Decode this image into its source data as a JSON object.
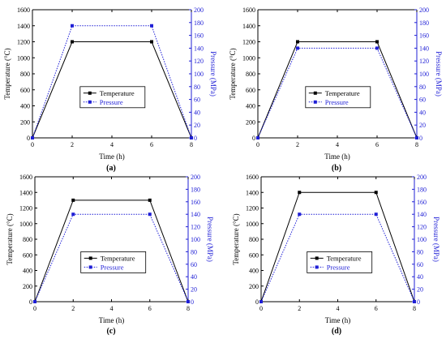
{
  "colors": {
    "temperature": "#000000",
    "pressure": "#1f1fd6",
    "axis": "#000000"
  },
  "chart_data": [
    {
      "type": "line",
      "panel_label": "(a)",
      "xlabel": "Time (h)",
      "ylabel_left": "Temperature (°C)",
      "ylabel_right": "Pressure (MPa)",
      "xlim": [
        0,
        8
      ],
      "xticks": [
        0,
        2,
        4,
        6,
        8
      ],
      "ylim_left": [
        0,
        1600
      ],
      "yticks_left": [
        0,
        200,
        400,
        600,
        800,
        1000,
        1200,
        1400,
        1600
      ],
      "ylim_right": [
        0,
        200
      ],
      "yticks_right": [
        0,
        20,
        40,
        60,
        80,
        100,
        120,
        140,
        160,
        180,
        200
      ],
      "legend_position": "center",
      "series": [
        {
          "name": "Temperature",
          "axis": "left",
          "style": "solid",
          "marker": "square",
          "x": [
            0,
            2,
            6,
            8
          ],
          "y": [
            0,
            1200,
            1200,
            0
          ]
        },
        {
          "name": "Pressure",
          "axis": "right",
          "style": "dotted",
          "marker": "square",
          "x": [
            0,
            2,
            6,
            8
          ],
          "y": [
            0,
            175,
            175,
            0
          ]
        }
      ]
    },
    {
      "type": "line",
      "panel_label": "(b)",
      "xlabel": "Time (h)",
      "ylabel_left": "Temperature (°C)",
      "ylabel_right": "Pressure (MPa)",
      "xlim": [
        0,
        8
      ],
      "xticks": [
        0,
        2,
        4,
        6,
        8
      ],
      "ylim_left": [
        0,
        1600
      ],
      "yticks_left": [
        0,
        200,
        400,
        600,
        800,
        1000,
        1200,
        1400,
        1600
      ],
      "ylim_right": [
        0,
        200
      ],
      "yticks_right": [
        0,
        20,
        40,
        60,
        80,
        100,
        120,
        140,
        160,
        180,
        200
      ],
      "legend_position": "center",
      "series": [
        {
          "name": "Temperature",
          "axis": "left",
          "style": "solid",
          "marker": "square",
          "x": [
            0,
            2,
            6,
            8
          ],
          "y": [
            0,
            1200,
            1200,
            0
          ]
        },
        {
          "name": "Pressure",
          "axis": "right",
          "style": "dotted",
          "marker": "square",
          "x": [
            0,
            2,
            6,
            8
          ],
          "y": [
            0,
            140,
            140,
            0
          ]
        }
      ]
    },
    {
      "type": "line",
      "panel_label": "(c)",
      "xlabel": "Time (h)",
      "ylabel_left": "Temperature (°C)",
      "ylabel_right": "Pressure (MPa)",
      "xlim": [
        0,
        8
      ],
      "xticks": [
        0,
        2,
        4,
        6,
        8
      ],
      "ylim_left": [
        0,
        1600
      ],
      "yticks_left": [
        0,
        200,
        400,
        600,
        800,
        1000,
        1200,
        1400,
        1600
      ],
      "ylim_right": [
        0,
        200
      ],
      "yticks_right": [
        0,
        20,
        40,
        60,
        80,
        100,
        120,
        140,
        160,
        180,
        200
      ],
      "legend_position": "center",
      "series": [
        {
          "name": "Temperature",
          "axis": "left",
          "style": "solid",
          "marker": "square",
          "x": [
            0,
            2,
            6,
            8
          ],
          "y": [
            0,
            1300,
            1300,
            0
          ]
        },
        {
          "name": "Pressure",
          "axis": "right",
          "style": "dotted",
          "marker": "square",
          "x": [
            0,
            2,
            6,
            8
          ],
          "y": [
            0,
            140,
            140,
            0
          ]
        }
      ]
    },
    {
      "type": "line",
      "panel_label": "(d)",
      "xlabel": "Time (h)",
      "ylabel_left": "Temperature (°C)",
      "ylabel_right": "Pressure (MPa)",
      "xlim": [
        0,
        8
      ],
      "xticks": [
        0,
        2,
        4,
        6,
        8
      ],
      "ylim_left": [
        0,
        1600
      ],
      "yticks_left": [
        0,
        200,
        400,
        600,
        800,
        1000,
        1200,
        1400,
        1600
      ],
      "ylim_right": [
        0,
        200
      ],
      "yticks_right": [
        0,
        20,
        40,
        60,
        80,
        100,
        120,
        140,
        160,
        180,
        200
      ],
      "legend_position": "center",
      "series": [
        {
          "name": "Temperature",
          "axis": "left",
          "style": "solid",
          "marker": "square",
          "x": [
            0,
            2,
            6,
            8
          ],
          "y": [
            0,
            1400,
            1400,
            0
          ]
        },
        {
          "name": "Pressure",
          "axis": "right",
          "style": "dotted",
          "marker": "square",
          "x": [
            0,
            2,
            6,
            8
          ],
          "y": [
            0,
            140,
            140,
            0
          ]
        }
      ]
    }
  ]
}
